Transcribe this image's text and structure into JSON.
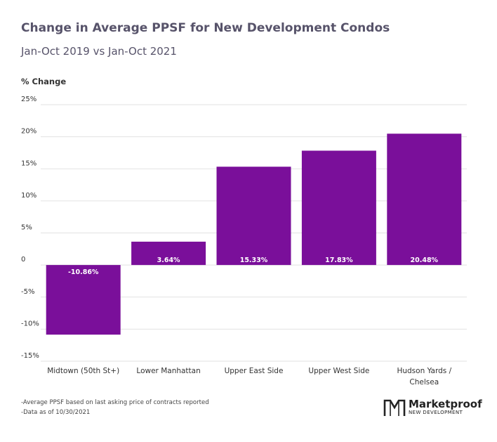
{
  "chart_data": {
    "type": "bar",
    "title": "Change in Average PPSF for New Development Condos",
    "subtitle": "Jan-Oct 2019 vs Jan-Oct 2021",
    "ylabel": "% Change",
    "xlabel": "",
    "categories": [
      "Midtown (50th St+)",
      "Lower Manhattan",
      "Upper East Side",
      "Upper West Side",
      "Hudson Yards / Chelsea"
    ],
    "values": [
      -10.86,
      3.64,
      15.33,
      17.83,
      20.48
    ],
    "data_labels": [
      "-10.86%",
      "3.64%",
      "15.33%",
      "17.83%",
      "20.48%"
    ],
    "ylim": [
      -15,
      25
    ],
    "yticks": [
      25,
      20,
      15,
      10,
      5,
      0,
      -5,
      -10,
      -15
    ],
    "ytick_labels": [
      "25%",
      "20%",
      "15%",
      "10%",
      "5%",
      "0",
      "-5%",
      "-10%",
      "-15%"
    ],
    "bar_color": "#7a0f9a",
    "grid": true,
    "legend": "none"
  },
  "footnotes": [
    "-Average PPSF based on last asking price of contracts reported",
    "-Data as of 10/30/2021"
  ],
  "logo": {
    "name": "Marketproof",
    "tagline": "NEW DEVELOPMENT"
  }
}
